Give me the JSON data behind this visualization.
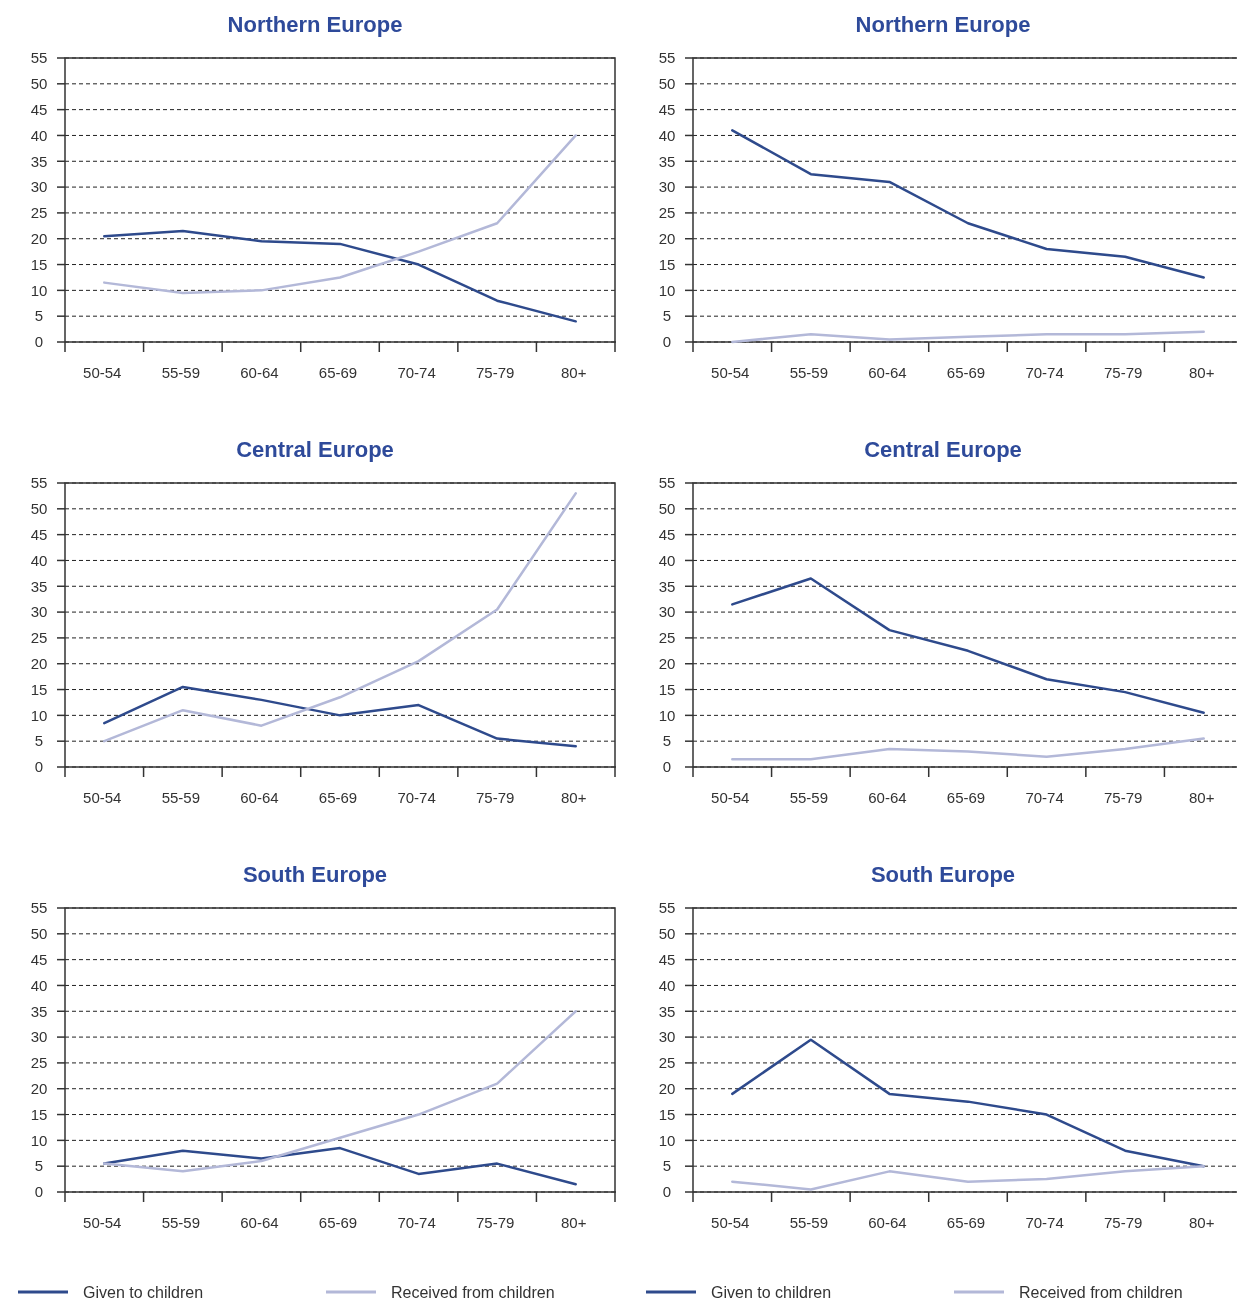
{
  "chart_data": [
    {
      "type": "line",
      "title": "Northern Europe",
      "categories": [
        "50-54",
        "55-59",
        "60-64",
        "65-69",
        "70-74",
        "75-79",
        "80+"
      ],
      "ylim": [
        0,
        55
      ],
      "yticks": [
        0,
        5,
        10,
        15,
        20,
        25,
        30,
        35,
        40,
        45,
        50,
        55
      ],
      "grid": "y",
      "legend": false,
      "series": [
        {
          "color": "#2e4a8c",
          "values": [
            20.5,
            21.5,
            19.5,
            19,
            15,
            8,
            4
          ]
        },
        {
          "color": "#b3b8d8",
          "values": [
            11.5,
            9.5,
            10,
            12.5,
            17.5,
            23,
            40
          ]
        }
      ]
    },
    {
      "type": "line",
      "title": "Northern Europe",
      "categories": [
        "50-54",
        "55-59",
        "60-64",
        "65-69",
        "70-74",
        "75-79",
        "80+"
      ],
      "ylim": [
        0,
        55
      ],
      "yticks": [
        0,
        5,
        10,
        15,
        20,
        25,
        30,
        35,
        40,
        45,
        50,
        55
      ],
      "grid": "y",
      "legend": false,
      "series": [
        {
          "color": "#2e4a8c",
          "values": [
            41,
            32.5,
            31,
            23,
            18,
            16.5,
            12.5
          ]
        },
        {
          "color": "#b3b8d8",
          "values": [
            0,
            1.5,
            0.5,
            1,
            1.5,
            1.5,
            2
          ]
        }
      ]
    },
    {
      "type": "line",
      "title": "Central Europe",
      "categories": [
        "50-54",
        "55-59",
        "60-64",
        "65-69",
        "70-74",
        "75-79",
        "80+"
      ],
      "ylim": [
        0,
        55
      ],
      "yticks": [
        0,
        5,
        10,
        15,
        20,
        25,
        30,
        35,
        40,
        45,
        50,
        55
      ],
      "grid": "y",
      "legend": false,
      "series": [
        {
          "color": "#2e4a8c",
          "values": [
            8.5,
            15.5,
            13,
            10,
            12,
            5.5,
            4
          ]
        },
        {
          "color": "#b3b8d8",
          "values": [
            5,
            11,
            8,
            13.5,
            20.5,
            30.5,
            53
          ]
        }
      ]
    },
    {
      "type": "line",
      "title": "Central Europe",
      "categories": [
        "50-54",
        "55-59",
        "60-64",
        "65-69",
        "70-74",
        "75-79",
        "80+"
      ],
      "ylim": [
        0,
        55
      ],
      "yticks": [
        0,
        5,
        10,
        15,
        20,
        25,
        30,
        35,
        40,
        45,
        50,
        55
      ],
      "grid": "y",
      "legend": false,
      "series": [
        {
          "color": "#2e4a8c",
          "values": [
            31.5,
            36.5,
            26.5,
            22.5,
            17,
            14.5,
            10.5
          ]
        },
        {
          "color": "#b3b8d8",
          "values": [
            1.5,
            1.5,
            3.5,
            3,
            2,
            3.5,
            5.5
          ]
        }
      ]
    },
    {
      "type": "line",
      "title": "South Europe",
      "categories": [
        "50-54",
        "55-59",
        "60-64",
        "65-69",
        "70-74",
        "75-79",
        "80+"
      ],
      "ylim": [
        0,
        55
      ],
      "yticks": [
        0,
        5,
        10,
        15,
        20,
        25,
        30,
        35,
        40,
        45,
        50,
        55
      ],
      "grid": "y",
      "legend": "bottom",
      "series": [
        {
          "name": "Given to children",
          "color": "#2e4a8c",
          "values": [
            5.5,
            8,
            6.5,
            8.5,
            3.5,
            5.5,
            1.5
          ]
        },
        {
          "name": "Received from children",
          "color": "#b3b8d8",
          "values": [
            5.5,
            4,
            6,
            10.5,
            15,
            21,
            35
          ]
        }
      ]
    },
    {
      "type": "line",
      "title": "South Europe",
      "categories": [
        "50-54",
        "55-59",
        "60-64",
        "65-69",
        "70-74",
        "75-79",
        "80+"
      ],
      "ylim": [
        0,
        55
      ],
      "yticks": [
        0,
        5,
        10,
        15,
        20,
        25,
        30,
        35,
        40,
        45,
        50,
        55
      ],
      "grid": "y",
      "legend": "bottom",
      "series": [
        {
          "name": "Given to children",
          "color": "#2e4a8c",
          "values": [
            19,
            29.5,
            19,
            17.5,
            15,
            8,
            5
          ]
        },
        {
          "name": "Received from children",
          "color": "#b3b8d8",
          "values": [
            2,
            0.5,
            4,
            2,
            2.5,
            4,
            5
          ]
        }
      ]
    }
  ]
}
